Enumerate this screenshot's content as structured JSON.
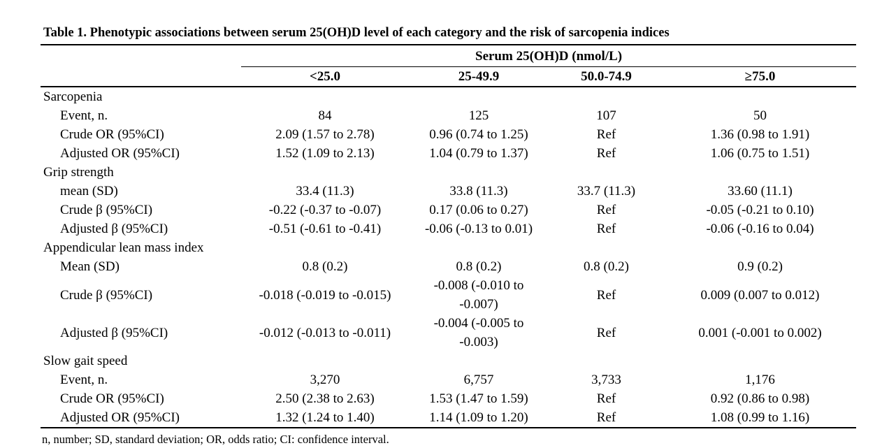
{
  "title": "Table 1. Phenotypic associations between serum 25(OH)D level of each category and the risk of sarcopenia indices",
  "table": {
    "spanner_header": "Serum 25(OH)D (nmol/L)",
    "column_headers": [
      "<25.0",
      "25-49.9",
      "50.0-74.9",
      "≥75.0"
    ],
    "sections": [
      {
        "name": "Sarcopenia",
        "rows": [
          {
            "label": "Event, n.",
            "values": [
              "84",
              "125",
              "107",
              "50"
            ]
          },
          {
            "label": "Crude OR (95%CI)",
            "values": [
              "2.09 (1.57 to 2.78)",
              "0.96 (0.74 to 1.25)",
              "Ref",
              "1.36 (0.98 to 1.91)"
            ]
          },
          {
            "label": "Adjusted OR (95%CI)",
            "values": [
              "1.52 (1.09 to 2.13)",
              "1.04 (0.79 to 1.37)",
              "Ref",
              "1.06 (0.75 to 1.51)"
            ]
          }
        ]
      },
      {
        "name": "Grip strength",
        "rows": [
          {
            "label": "mean (SD)",
            "values": [
              "33.4 (11.3)",
              "33.8 (11.3)",
              "33.7 (11.3)",
              "33.60 (11.1)"
            ]
          },
          {
            "label": "Crude β (95%CI)",
            "values": [
              "-0.22 (-0.37 to -0.07)",
              "0.17 (0.06 to 0.27)",
              "Ref",
              "-0.05 (-0.21 to 0.10)"
            ]
          },
          {
            "label": "Adjusted β (95%CI)",
            "values": [
              "-0.51 (-0.61 to -0.41)",
              "-0.06 (-0.13 to 0.01)",
              "Ref",
              "-0.06 (-0.16 to 0.04)"
            ]
          }
        ]
      },
      {
        "name": "Appendicular lean mass index",
        "rows": [
          {
            "label": "Mean (SD)",
            "values": [
              "0.8 (0.2)",
              "0.8 (0.2)",
              "0.8 (0.2)",
              "0.9 (0.2)"
            ]
          },
          {
            "label": "Crude β (95%CI)",
            "values": [
              "-0.018 (-0.019 to -0.015)",
              "-0.008 (-0.010 to -0.007)",
              "Ref",
              "0.009 (0.007 to 0.012)"
            ]
          },
          {
            "label": "Adjusted β (95%CI)",
            "values": [
              "-0.012 (-0.013 to -0.011)",
              "-0.004 (-0.005 to -0.003)",
              "Ref",
              "0.001 (-0.001 to 0.002)"
            ]
          }
        ]
      },
      {
        "name": "Slow gait speed",
        "rows": [
          {
            "label": "Event, n.",
            "values": [
              "3,270",
              "6,757",
              "3,733",
              "1,176"
            ]
          },
          {
            "label": "Crude OR (95%CI)",
            "values": [
              "2.50 (2.38 to 2.63)",
              "1.53 (1.47 to 1.59)",
              "Ref",
              "0.92 (0.86 to 0.98)"
            ]
          },
          {
            "label": "Adjusted OR (95%CI)",
            "values": [
              "1.32 (1.24 to 1.40)",
              "1.14 (1.09 to 1.20)",
              "Ref",
              "1.08 (0.99 to 1.16)"
            ]
          }
        ]
      }
    ],
    "footnote": "n, number; SD, standard deviation; OR, odds ratio; CI: confidence interval."
  }
}
